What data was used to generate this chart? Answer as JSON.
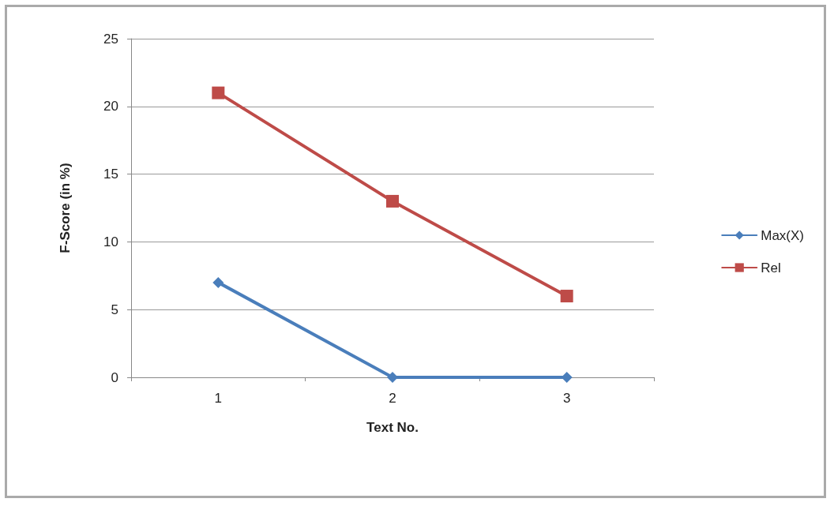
{
  "chart_data": {
    "type": "line",
    "xlabel": "Text No.",
    "ylabel": "F-Score (in %)",
    "categories": [
      "1",
      "2",
      "3"
    ],
    "series": [
      {
        "name": "Max(X)",
        "color": "#4a7ebb",
        "values": [
          7,
          0,
          0
        ],
        "marker": "diamond"
      },
      {
        "name": "Rel",
        "color": "#be4b48",
        "values": [
          21,
          13,
          6
        ],
        "marker": "square"
      }
    ],
    "ylim": [
      0,
      25
    ],
    "yticks": [
      0,
      5,
      10,
      15,
      20,
      25
    ],
    "grid": "y",
    "legend": "right",
    "line_style": "solid"
  }
}
